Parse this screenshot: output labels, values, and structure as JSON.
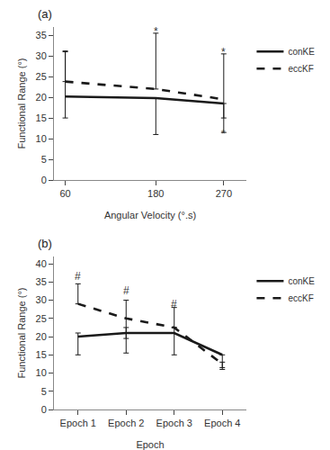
{
  "chart_data": [
    {
      "type": "line",
      "title": "(a)",
      "xlabel": "Angular Velocity (°.s)",
      "ylabel": "Functional Range (°)",
      "x": [
        60,
        180,
        270
      ],
      "series": [
        {
          "name": "conKE",
          "color": "#1a1a1a",
          "line_style": "solid",
          "values": [
            20.2,
            19.8,
            18.5
          ],
          "error_low": [
            5.2,
            8.8,
            3.5
          ],
          "error_high": [
            11.0,
            0.0,
            0.0
          ]
        },
        {
          "name": "eccKF",
          "color": "#1a1a1a",
          "line_style": "dashed",
          "values": [
            23.8,
            22.0,
            19.5
          ],
          "error_low": [
            0.0,
            0.0,
            8.0
          ],
          "error_high": [
            7.2,
            13.5,
            11.0
          ]
        }
      ],
      "annotations": [
        {
          "x": 180,
          "y": 36.0,
          "text": "*"
        },
        {
          "x": 270,
          "y": 31.0,
          "text": "*"
        },
        {
          "x": 270,
          "y": 11.2,
          "text": "*"
        }
      ],
      "xlim": [
        45,
        300
      ],
      "xticks": [
        60,
        180,
        270
      ],
      "ylim": [
        0,
        37
      ],
      "yticks": [
        0,
        5,
        10,
        15,
        20,
        25,
        30,
        35
      ],
      "grid": false,
      "legend": "right"
    },
    {
      "type": "line",
      "title": "(b)",
      "xlabel": "Epoch",
      "ylabel": "Functional Range (°)",
      "x": [
        1,
        2,
        3,
        4
      ],
      "series": [
        {
          "name": "conKE",
          "color": "#1a1a1a",
          "line_style": "solid",
          "values": [
            20.0,
            21.0,
            21.0,
            15.0
          ],
          "error_low": [
            5.0,
            5.5,
            6.0,
            4.0
          ],
          "error_high": [
            1.0,
            1.5,
            1.5,
            0.0
          ]
        },
        {
          "name": "eccKF",
          "color": "#1a1a1a",
          "line_style": "dashed",
          "values": [
            29.0,
            25.0,
            22.5,
            12.5
          ],
          "error_low": [
            0.0,
            5.5,
            0.0,
            1.0
          ],
          "error_high": [
            5.5,
            5.0,
            5.5,
            0.5
          ]
        }
      ],
      "annotations": [
        {
          "x": 1,
          "y": 36.5,
          "text": "#"
        },
        {
          "x": 2,
          "y": 32.5,
          "text": "#"
        },
        {
          "x": 3,
          "y": 29.0,
          "text": "#"
        }
      ],
      "xlim": [
        0.5,
        4.5
      ],
      "xticks": [
        {
          "value": 1,
          "label": "Epoch 1"
        },
        {
          "value": 2,
          "label": "Epoch 2"
        },
        {
          "value": 3,
          "label": "Epoch 3"
        },
        {
          "value": 4,
          "label": "Epoch 4"
        }
      ],
      "ylim": [
        0,
        42
      ],
      "yticks": [
        0,
        5,
        10,
        15,
        20,
        25,
        30,
        35,
        40
      ],
      "grid": false,
      "legend": "right"
    }
  ]
}
